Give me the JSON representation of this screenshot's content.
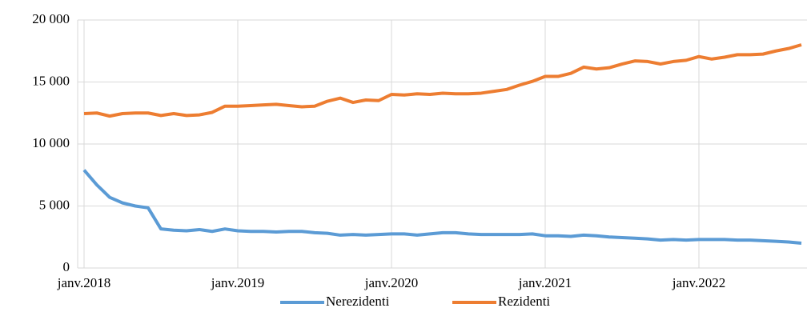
{
  "chart_data": {
    "type": "line",
    "categories": [
      "janv.2018",
      null,
      null,
      null,
      null,
      null,
      null,
      null,
      null,
      null,
      null,
      null,
      "janv.2019",
      null,
      null,
      null,
      null,
      null,
      null,
      null,
      null,
      null,
      null,
      null,
      "janv.2020",
      null,
      null,
      null,
      null,
      null,
      null,
      null,
      null,
      null,
      null,
      null,
      "janv.2021",
      null,
      null,
      null,
      null,
      null,
      null,
      null,
      null,
      null,
      null,
      null,
      "janv.2022",
      null,
      null,
      null,
      null,
      null,
      null,
      null,
      null
    ],
    "series": [
      {
        "name": "Nerezidenti",
        "color": "#5b9bd5",
        "values": [
          7900,
          6700,
          5700,
          5250,
          5000,
          4850,
          3150,
          3050,
          3000,
          3100,
          2950,
          3150,
          3000,
          2950,
          2950,
          2900,
          2950,
          2950,
          2850,
          2800,
          2650,
          2700,
          2650,
          2700,
          2750,
          2750,
          2650,
          2750,
          2850,
          2850,
          2750,
          2700,
          2700,
          2700,
          2700,
          2750,
          2600,
          2600,
          2550,
          2650,
          2600,
          2500,
          2450,
          2400,
          2350,
          2250,
          2300,
          2250,
          2300,
          2300,
          2300,
          2250,
          2250,
          2200,
          2150,
          2100,
          2000
        ]
      },
      {
        "name": "Rezidenti",
        "color": "#ed7d31",
        "values": [
          12450,
          12500,
          12250,
          12450,
          12500,
          12500,
          12300,
          12450,
          12300,
          12350,
          12550,
          13050,
          13050,
          13100,
          13150,
          13200,
          13100,
          13000,
          13050,
          13450,
          13700,
          13350,
          13550,
          13500,
          14000,
          13950,
          14050,
          14000,
          14100,
          14050,
          14050,
          14100,
          14250,
          14400,
          14750,
          15050,
          15450,
          15450,
          15700,
          16200,
          16050,
          16150,
          16450,
          16700,
          16650,
          16450,
          16650,
          16750,
          17050,
          16850,
          17000,
          17200,
          17200,
          17250,
          17500,
          17700,
          18000
        ]
      }
    ],
    "ylim": [
      0,
      20000
    ],
    "yticks": [
      0,
      {
        "value": 5000,
        "label": "5 000"
      },
      {
        "value": 10000,
        "label": "10 000"
      },
      {
        "value": 15000,
        "label": "15 000"
      },
      {
        "value": 20000,
        "label": "20 000"
      }
    ],
    "grid": true,
    "legend": "bottom"
  }
}
